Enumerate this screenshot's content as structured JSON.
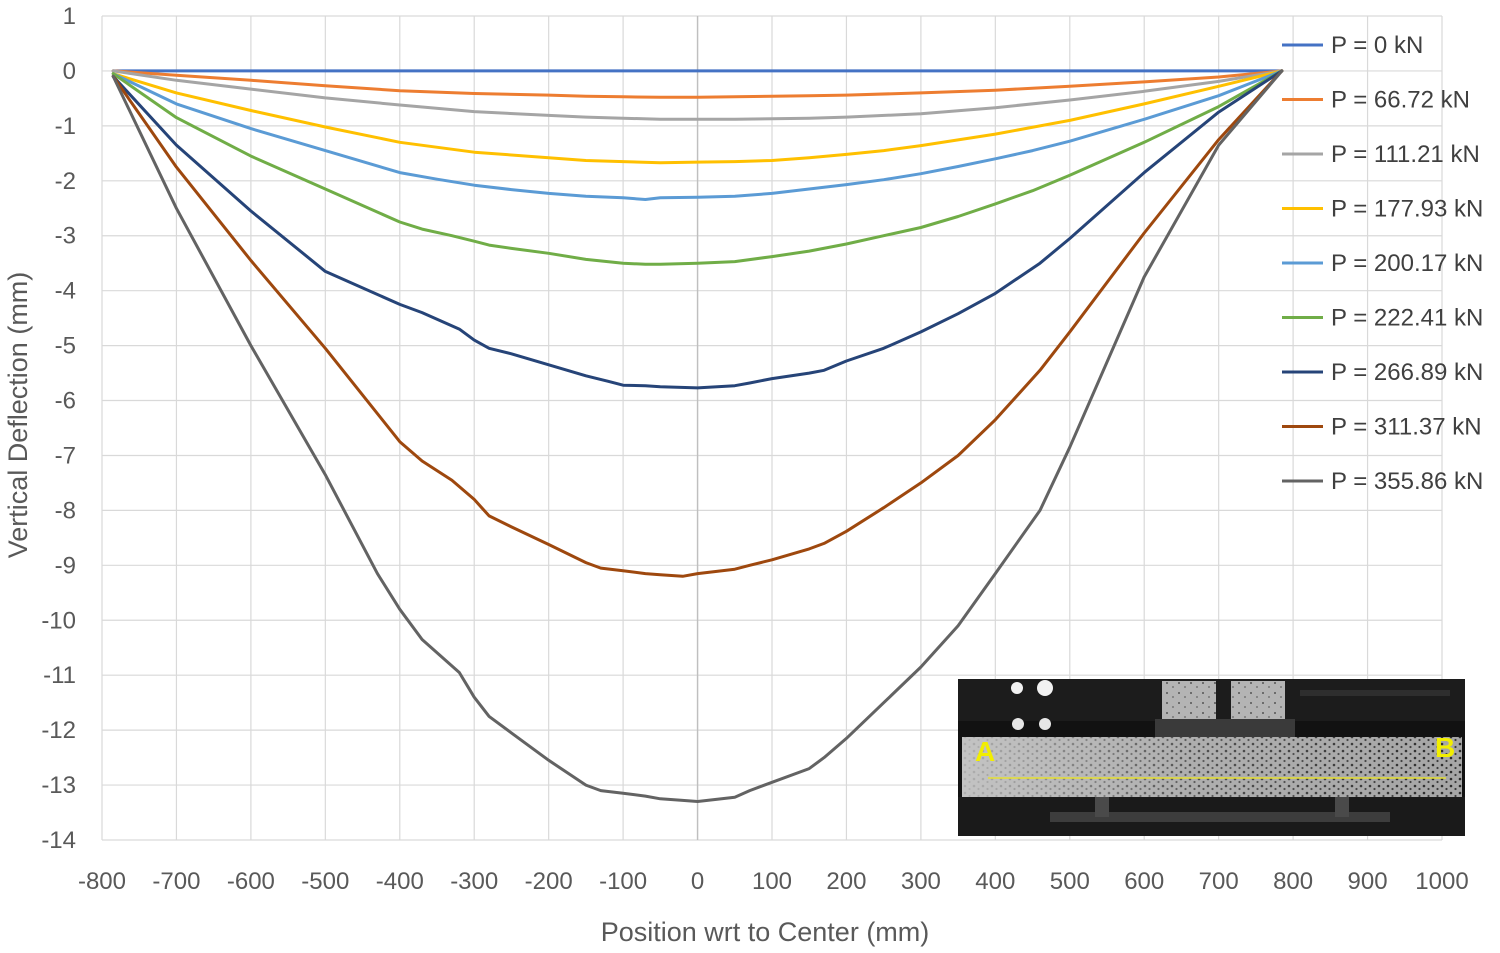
{
  "chart_data": {
    "type": "line",
    "title": "",
    "xlabel": "Position wrt to Center (mm)",
    "ylabel": "Vertical Deflection (mm)",
    "xlim": [
      -800,
      1000
    ],
    "ylim": [
      -14,
      1
    ],
    "x_ticks": [
      "-800",
      "-700",
      "-600",
      "-500",
      "-400",
      "-300",
      "-200",
      "-100",
      "0",
      "100",
      "200",
      "300",
      "400",
      "500",
      "600",
      "700",
      "800",
      "900",
      "1000"
    ],
    "y_ticks": [
      "1",
      "0",
      "-1",
      "-2",
      "-3",
      "-4",
      "-5",
      "-6",
      "-7",
      "-8",
      "-9",
      "-10",
      "-11",
      "-12",
      "-13",
      "-14"
    ],
    "grid": "vertical and horizontal major gridlines",
    "legend_position": "right",
    "series": [
      {
        "name": "P = 0 kN",
        "color": "#4472c4",
        "x": [
          -785,
          -400,
          0,
          400,
          785
        ],
        "y": [
          0,
          0,
          0,
          0,
          0
        ]
      },
      {
        "name": "P = 66.72 kN",
        "color": "#ed7d31",
        "x": [
          -785,
          -700,
          -600,
          -500,
          -400,
          -300,
          -200,
          -150,
          -100,
          -50,
          0,
          50,
          100,
          150,
          200,
          300,
          400,
          500,
          600,
          700,
          785
        ],
        "y": [
          0,
          -0.08,
          -0.17,
          -0.27,
          -0.36,
          -0.41,
          -0.44,
          -0.46,
          -0.47,
          -0.48,
          -0.48,
          -0.47,
          -0.46,
          -0.45,
          -0.44,
          -0.4,
          -0.35,
          -0.28,
          -0.2,
          -0.11,
          0
        ]
      },
      {
        "name": "P = 111.21 kN",
        "color": "#a5a5a5",
        "x": [
          -785,
          -700,
          -600,
          -500,
          -400,
          -300,
          -200,
          -150,
          -100,
          -50,
          0,
          50,
          100,
          150,
          200,
          300,
          400,
          500,
          600,
          700,
          785
        ],
        "y": [
          0,
          -0.17,
          -0.33,
          -0.49,
          -0.62,
          -0.74,
          -0.81,
          -0.84,
          -0.86,
          -0.88,
          -0.88,
          -0.88,
          -0.87,
          -0.86,
          -0.84,
          -0.78,
          -0.67,
          -0.53,
          -0.37,
          -0.19,
          0
        ]
      },
      {
        "name": "P = 177.93 kN",
        "color": "#ffc000",
        "x": [
          -785,
          -700,
          -600,
          -500,
          -400,
          -300,
          -200,
          -150,
          -100,
          -50,
          0,
          50,
          100,
          150,
          200,
          250,
          300,
          400,
          500,
          600,
          700,
          785
        ],
        "y": [
          -0.05,
          -0.4,
          -0.72,
          -1.02,
          -1.3,
          -1.48,
          -1.58,
          -1.63,
          -1.65,
          -1.67,
          -1.66,
          -1.65,
          -1.63,
          -1.58,
          -1.52,
          -1.45,
          -1.36,
          -1.15,
          -0.9,
          -0.6,
          -0.28,
          0
        ]
      },
      {
        "name": "P = 200.17 kN",
        "color": "#5b9bd5",
        "x": [
          -785,
          -700,
          -600,
          -500,
          -400,
          -350,
          -300,
          -250,
          -200,
          -150,
          -100,
          -70,
          -50,
          0,
          50,
          100,
          150,
          200,
          250,
          300,
          350,
          400,
          450,
          500,
          600,
          700,
          785
        ],
        "y": [
          -0.05,
          -0.6,
          -1.05,
          -1.45,
          -1.85,
          -1.97,
          -2.08,
          -2.16,
          -2.23,
          -2.28,
          -2.31,
          -2.34,
          -2.31,
          -2.3,
          -2.28,
          -2.23,
          -2.15,
          -2.07,
          -1.98,
          -1.87,
          -1.74,
          -1.6,
          -1.45,
          -1.28,
          -0.88,
          -0.45,
          0
        ]
      },
      {
        "name": "P = 222.41 kN",
        "color": "#70ad47",
        "x": [
          -785,
          -700,
          -600,
          -500,
          -400,
          -370,
          -330,
          -300,
          -280,
          -250,
          -200,
          -150,
          -100,
          -70,
          -50,
          0,
          50,
          100,
          150,
          200,
          250,
          300,
          350,
          400,
          450,
          500,
          600,
          700,
          785
        ],
        "y": [
          -0.05,
          -0.85,
          -1.55,
          -2.15,
          -2.75,
          -2.88,
          -3.0,
          -3.1,
          -3.17,
          -3.23,
          -3.32,
          -3.43,
          -3.5,
          -3.52,
          -3.52,
          -3.5,
          -3.47,
          -3.38,
          -3.28,
          -3.15,
          -3.0,
          -2.85,
          -2.65,
          -2.42,
          -2.18,
          -1.9,
          -1.3,
          -0.65,
          0
        ]
      },
      {
        "name": "P = 266.89 kN",
        "color": "#264478",
        "x": [
          -785,
          -700,
          -600,
          -500,
          -400,
          -370,
          -320,
          -300,
          -280,
          -250,
          -200,
          -150,
          -120,
          -100,
          -70,
          -50,
          0,
          50,
          70,
          100,
          150,
          170,
          200,
          250,
          300,
          350,
          400,
          460,
          500,
          600,
          700,
          785
        ],
        "y": [
          -0.1,
          -1.35,
          -2.55,
          -3.65,
          -4.25,
          -4.4,
          -4.7,
          -4.9,
          -5.05,
          -5.15,
          -5.35,
          -5.55,
          -5.65,
          -5.72,
          -5.73,
          -5.75,
          -5.77,
          -5.73,
          -5.68,
          -5.6,
          -5.5,
          -5.45,
          -5.28,
          -5.05,
          -4.75,
          -4.42,
          -4.05,
          -3.5,
          -3.05,
          -1.85,
          -0.75,
          0
        ]
      },
      {
        "name": "P = 311.37 kN",
        "color": "#9e480e",
        "x": [
          -785,
          -700,
          -600,
          -500,
          -400,
          -370,
          -330,
          -300,
          -280,
          -250,
          -200,
          -150,
          -130,
          -100,
          -70,
          -50,
          -20,
          0,
          50,
          70,
          100,
          150,
          170,
          200,
          250,
          300,
          350,
          400,
          460,
          500,
          600,
          700,
          785
        ],
        "y": [
          -0.1,
          -1.75,
          -3.45,
          -5.05,
          -6.75,
          -7.1,
          -7.45,
          -7.8,
          -8.1,
          -8.3,
          -8.62,
          -8.95,
          -9.05,
          -9.1,
          -9.15,
          -9.17,
          -9.2,
          -9.15,
          -9.07,
          -9.0,
          -8.9,
          -8.7,
          -8.6,
          -8.38,
          -7.95,
          -7.5,
          -7.0,
          -6.35,
          -5.45,
          -4.75,
          -2.95,
          -1.25,
          0
        ]
      },
      {
        "name": "P = 355.86 kN",
        "color": "#636363",
        "x": [
          -785,
          -700,
          -600,
          -500,
          -430,
          -400,
          -370,
          -320,
          -300,
          -280,
          -250,
          -200,
          -150,
          -130,
          -100,
          -70,
          -50,
          -20,
          0,
          50,
          70,
          100,
          150,
          170,
          200,
          250,
          300,
          350,
          400,
          460,
          500,
          600,
          700,
          785
        ],
        "y": [
          -0.1,
          -2.5,
          -5.0,
          -7.35,
          -9.15,
          -9.8,
          -10.35,
          -10.95,
          -11.4,
          -11.75,
          -12.05,
          -12.55,
          -13.0,
          -13.1,
          -13.15,
          -13.2,
          -13.25,
          -13.28,
          -13.3,
          -13.22,
          -13.1,
          -12.95,
          -12.7,
          -12.5,
          -12.15,
          -11.5,
          -10.85,
          -10.1,
          -9.15,
          -8.0,
          -6.85,
          -3.75,
          -1.35,
          0
        ]
      }
    ]
  },
  "inset_photo": {
    "label_left": "A",
    "label_right": "B"
  }
}
